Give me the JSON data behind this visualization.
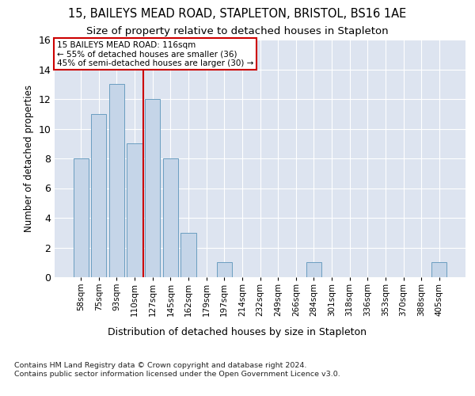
{
  "title": "15, BAILEYS MEAD ROAD, STAPLETON, BRISTOL, BS16 1AE",
  "subtitle": "Size of property relative to detached houses in Stapleton",
  "xlabel": "Distribution of detached houses by size in Stapleton",
  "ylabel": "Number of detached properties",
  "categories": [
    "58sqm",
    "75sqm",
    "93sqm",
    "110sqm",
    "127sqm",
    "145sqm",
    "162sqm",
    "179sqm",
    "197sqm",
    "214sqm",
    "232sqm",
    "249sqm",
    "266sqm",
    "284sqm",
    "301sqm",
    "318sqm",
    "336sqm",
    "353sqm",
    "370sqm",
    "388sqm",
    "405sqm"
  ],
  "values": [
    8,
    11,
    13,
    9,
    12,
    8,
    3,
    0,
    1,
    0,
    0,
    0,
    0,
    1,
    0,
    0,
    0,
    0,
    0,
    0,
    1
  ],
  "bar_color": "#c5d5e8",
  "bar_edge_color": "#6a9ec0",
  "vline_x": 3.5,
  "vline_color": "#cc0000",
  "annotation_text": "15 BAILEYS MEAD ROAD: 116sqm\n← 55% of detached houses are smaller (36)\n45% of semi-detached houses are larger (30) →",
  "annotation_box_edge": "#cc0000",
  "footnote": "Contains HM Land Registry data © Crown copyright and database right 2024.\nContains public sector information licensed under the Open Government Licence v3.0.",
  "ylim": [
    0,
    16
  ],
  "yticks": [
    0,
    2,
    4,
    6,
    8,
    10,
    12,
    14,
    16
  ],
  "background_color": "#dde4f0",
  "grid_color": "#ffffff",
  "title_fontsize": 10.5,
  "subtitle_fontsize": 9.5
}
